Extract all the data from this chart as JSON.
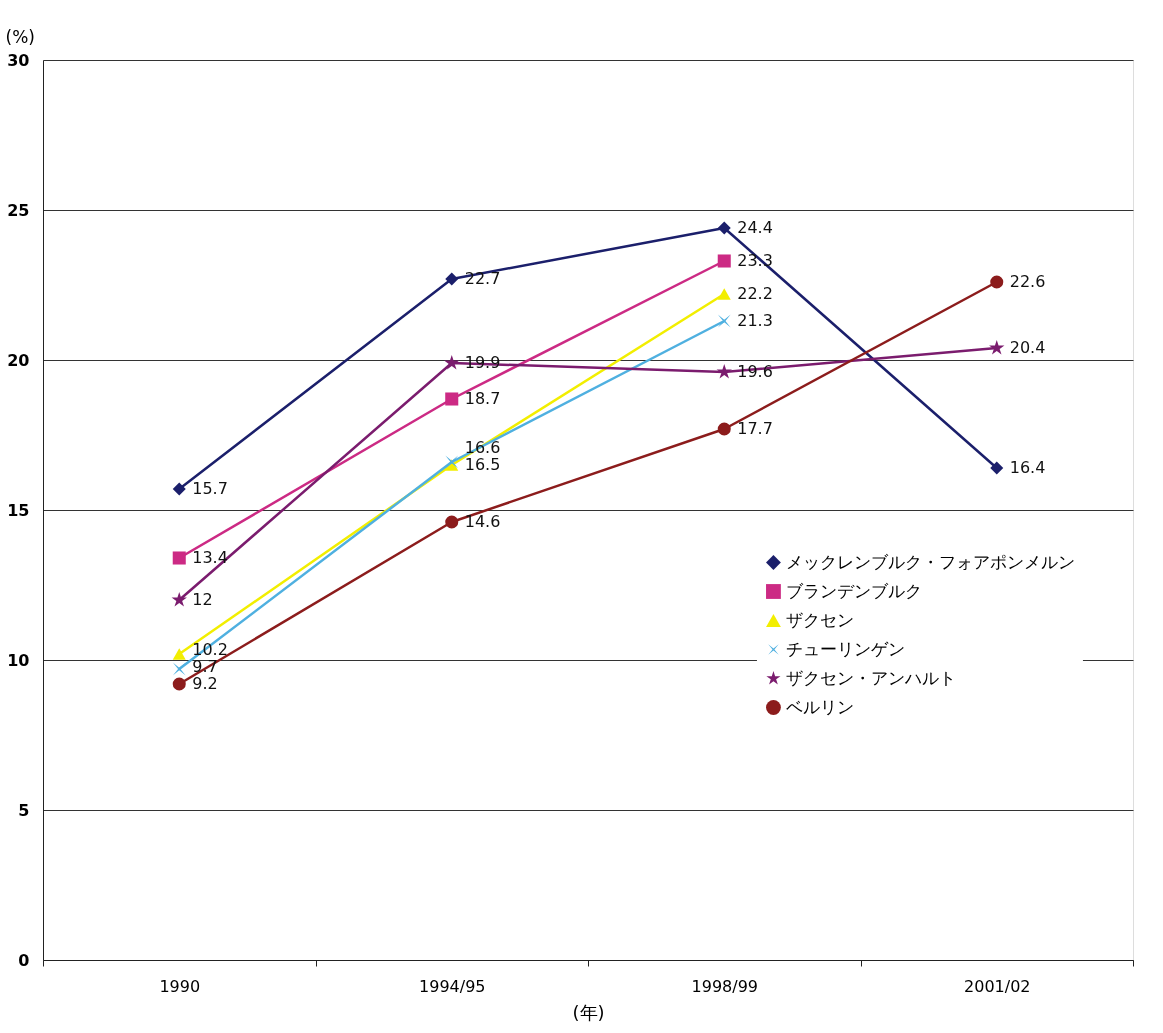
{
  "chart_data": {
    "type": "line",
    "xlabel": "(年)",
    "ylabel": "(%)",
    "categories": [
      "1990",
      "1994/95",
      "1998/99",
      "2001/02"
    ],
    "ylim": [
      0,
      30
    ],
    "yticks": [
      0,
      5,
      10,
      15,
      20,
      25,
      30
    ],
    "grid": "y",
    "legend": "right",
    "data_labels": true,
    "series": [
      {
        "name": "メックレンブルク・フォアポンメルン",
        "color": "#1b1f6b",
        "marker": "diamond",
        "values": [
          15.7,
          22.7,
          24.4,
          16.4
        ]
      },
      {
        "name": "ブランデンブルク",
        "color": "#cc2a84",
        "marker": "square",
        "values": [
          13.4,
          18.7,
          23.3,
          null
        ]
      },
      {
        "name": "ザクセン",
        "color": "#f2ee00",
        "marker": "triangle",
        "values": [
          10.2,
          16.5,
          22.2,
          null
        ]
      },
      {
        "name": "チューリンゲン",
        "color": "#4fb0e0",
        "marker": "cross",
        "values": [
          9.7,
          16.6,
          21.3,
          null
        ]
      },
      {
        "name": "ザクセン・アンハルト",
        "color": "#7b1c6e",
        "marker": "star",
        "values": [
          12,
          19.9,
          19.6,
          20.4
        ]
      },
      {
        "name": "ベルリン",
        "color": "#8c1c1c",
        "marker": "circle",
        "values": [
          9.2,
          14.6,
          17.7,
          22.6
        ]
      }
    ]
  }
}
